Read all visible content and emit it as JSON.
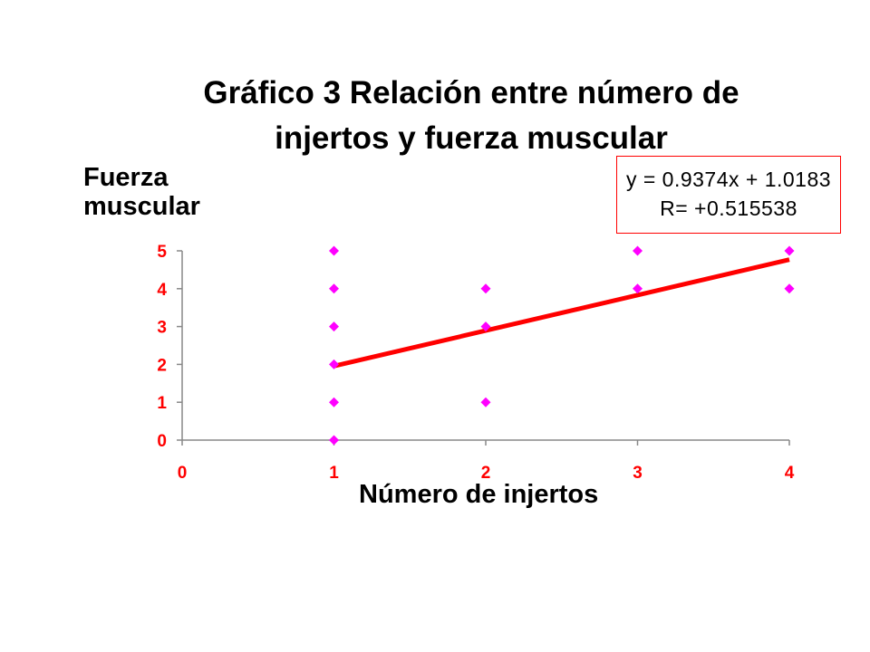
{
  "chart_data": {
    "type": "scatter",
    "title_lines": [
      "Gráfico 3 Relación entre número de",
      "injertos y fuerza muscular"
    ],
    "ylabel_lines": [
      "Fuerza",
      "muscular"
    ],
    "xlabel": "Número de injertos",
    "xlim": [
      0,
      4
    ],
    "ylim": [
      0,
      5
    ],
    "x_ticks": [
      "0",
      "1",
      "2",
      "3",
      "4"
    ],
    "y_ticks": [
      "0",
      "1",
      "2",
      "3",
      "4",
      "5"
    ],
    "grid": false,
    "points": [
      {
        "x": 1,
        "y": 5
      },
      {
        "x": 1,
        "y": 4
      },
      {
        "x": 1,
        "y": 3
      },
      {
        "x": 1,
        "y": 2
      },
      {
        "x": 1,
        "y": 1
      },
      {
        "x": 1,
        "y": 0
      },
      {
        "x": 2,
        "y": 4
      },
      {
        "x": 2,
        "y": 3
      },
      {
        "x": 2,
        "y": 1
      },
      {
        "x": 3,
        "y": 5
      },
      {
        "x": 3,
        "y": 4
      },
      {
        "x": 4,
        "y": 5
      },
      {
        "x": 4,
        "y": 4
      }
    ],
    "trendline": {
      "slope": 0.9374,
      "intercept": 1.0183,
      "x_range": [
        1,
        4
      ]
    },
    "annotation": {
      "equation": "y = 0.9374x + 1.0183",
      "r_value": "R= +0.515538"
    },
    "colors": {
      "points": "#ff00ff",
      "trendline": "#ff0000",
      "tick_labels": "#ff0000",
      "axes": "#888888",
      "annotation_border": "#ff0000"
    }
  }
}
